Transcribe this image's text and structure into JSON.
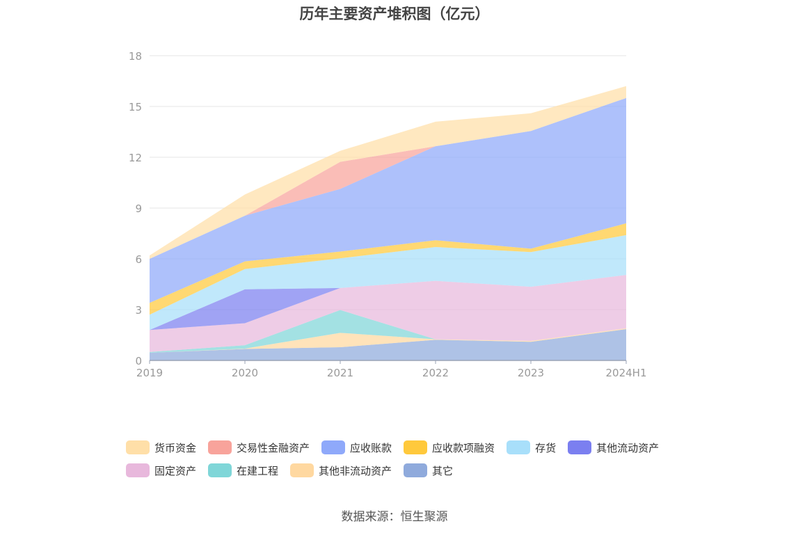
{
  "page": {
    "source": "数据来源：恒生聚源"
  },
  "chart_data": {
    "type": "area",
    "stacked": true,
    "title": "历年主要资产堆积图（亿元）",
    "xlabel": "",
    "ylabel": "",
    "x": [
      "2019",
      "2020",
      "2021",
      "2022",
      "2023",
      "2024H1"
    ],
    "ylim": [
      0,
      18
    ],
    "yticks": [
      0,
      3,
      6,
      9,
      12,
      15,
      18
    ],
    "grid": true,
    "legend_position": "bottom",
    "series": [
      {
        "name": "其它",
        "color": "#8FAADC",
        "values": [
          0.45,
          0.68,
          0.78,
          1.22,
          1.1,
          1.85
        ]
      },
      {
        "name": "其他非流动资产",
        "color": "#FFD8A0",
        "values": [
          0.0,
          0.02,
          0.85,
          0.03,
          0.05,
          0.05
        ]
      },
      {
        "name": "在建工程",
        "color": "#7FD6D8",
        "values": [
          0.05,
          0.2,
          1.35,
          0.0,
          0.0,
          0.0
        ]
      },
      {
        "name": "固定资产",
        "color": "#E8B8DC",
        "values": [
          1.3,
          1.3,
          1.3,
          3.45,
          3.2,
          3.15
        ]
      },
      {
        "name": "其他流动资产",
        "color": "#7B7FF0",
        "values": [
          0.0,
          2.0,
          0.0,
          0.0,
          0.0,
          0.0
        ]
      },
      {
        "name": "存货",
        "color": "#A8DFFA",
        "values": [
          0.9,
          1.2,
          1.75,
          2.0,
          2.05,
          2.35
        ]
      },
      {
        "name": "应收款项融资",
        "color": "#FFC93C",
        "values": [
          0.7,
          0.45,
          0.4,
          0.4,
          0.2,
          0.7
        ]
      },
      {
        "name": "应收账款",
        "color": "#8FA9FA",
        "values": [
          2.6,
          2.7,
          3.7,
          5.55,
          6.95,
          7.4
        ]
      },
      {
        "name": "交易性金融资产",
        "color": "#F8A39B",
        "values": [
          0.0,
          0.0,
          1.6,
          0.0,
          0.0,
          0.0
        ]
      },
      {
        "name": "货币资金",
        "color": "#FFDFA8",
        "values": [
          0.2,
          1.25,
          0.65,
          1.45,
          1.05,
          0.7
        ]
      }
    ],
    "legend_order": [
      "货币资金",
      "交易性金融资产",
      "应收账款",
      "应收款项融资",
      "存货",
      "其他流动资产",
      "固定资产",
      "在建工程",
      "其他非流动资产",
      "其它"
    ]
  }
}
